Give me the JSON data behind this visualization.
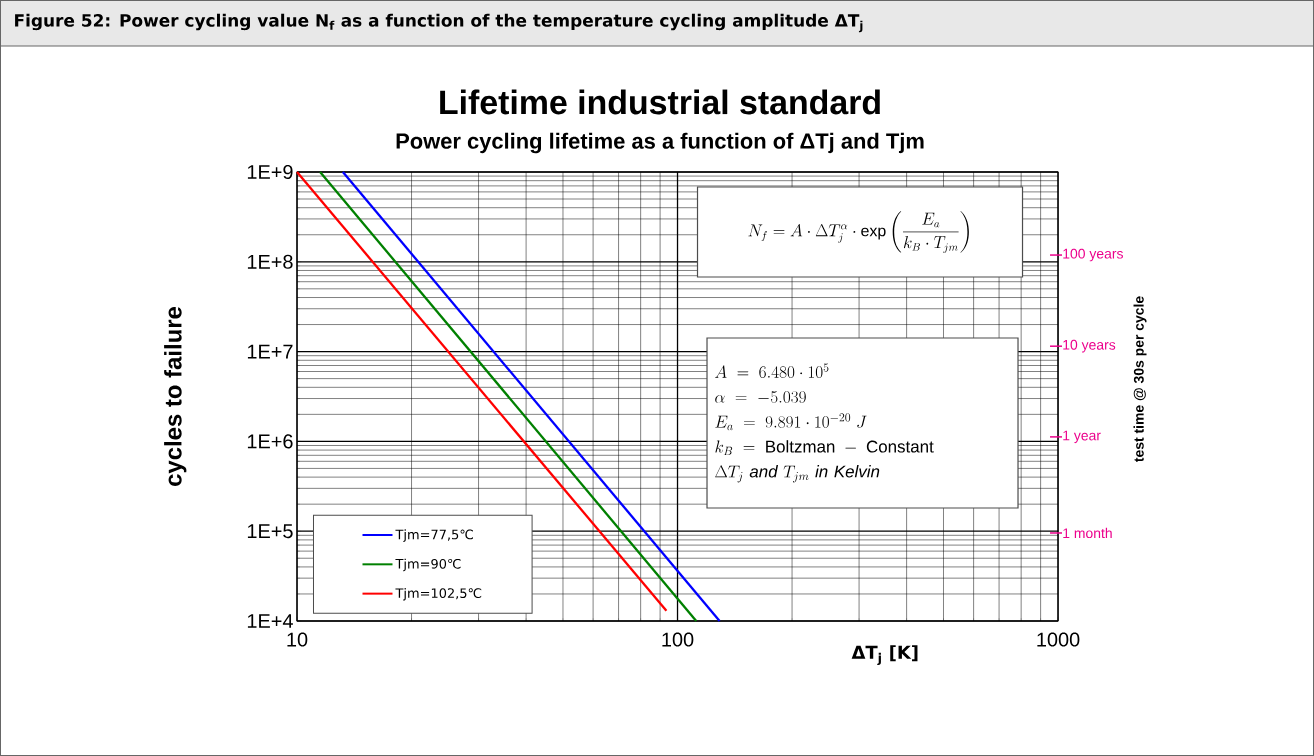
{
  "chart_data": {
    "type": "line",
    "title": "Lifetime industrial standard",
    "subtitle": "Power cycling lifetime as a function of ΔTj and Tjm",
    "xlabel": "ΔT$_{j}$  [K]",
    "ylabel": "cycles to failure",
    "y2label": "test time @ 30s per cycle",
    "annotations": [
      "Figure 52: Power cycling value N$_{f}$ as a function of the temperature cycling amplitude ΔT$_{j}$",
      "N_f = A \\cdot \\Delta T_j^{\\alpha} \\cdot \\exp\\left(\\frac{E_a}{k_B \\cdot T_{jm}}\\right)",
      "A \\;=\\; 6.480 \\cdot 10^{5}",
      "\\alpha \\;=\\; -5.039",
      "E_a \\;=\\; 9.891 \\cdot 10^{-20}\\; J",
      "k_B \\;=\\; \\mathrm{Boltzman} \\;-\\; \\mathrm{Constant}",
      "\\Delta T_j\\ \\mathit{and}\\ T_{jm}\\ \\mathit{in\\ Kelvin}",
      "100 years",
      "10 years",
      "1 year",
      "1 month"
    ],
    "series": [
      {
        "name": "Tjm=77,5℃",
        "color": "#0000ff",
        "x": [
          13.2,
          129
        ],
        "values": [
          1000000000.0,
          10000.0
        ]
      },
      {
        "name": "Tjm=90℃",
        "color": "#008000",
        "x": [
          11.5,
          112
        ],
        "values": [
          1000000000.0,
          10000.0
        ]
      },
      {
        "name": "Tjm=102,5℃",
        "color": "#ff0000",
        "x": [
          10.0,
          93.5
        ],
        "values": [
          1000000000.0,
          13000.0
        ]
      }
    ],
    "xlim": [
      10,
      1000
    ],
    "xticks": [
      10,
      100,
      1000
    ],
    "ylim": [
      10000.0,
      1000000000.0
    ],
    "yticks": [
      {
        "value": 10000.0,
        "label": "1E+4"
      },
      {
        "value": 100000.0,
        "label": "1E+5"
      },
      {
        "value": 1000000.0,
        "label": "1E+6"
      },
      {
        "value": 10000000.0,
        "label": "1E+7"
      },
      {
        "value": 100000000.0,
        "label": "1E+8"
      },
      {
        "value": 1000000000.0,
        "label": "1E+9"
      }
    ],
    "log": "xy",
    "grid": true,
    "legend": "bottom left",
    "marker": "none",
    "line_style": "solid"
  }
}
